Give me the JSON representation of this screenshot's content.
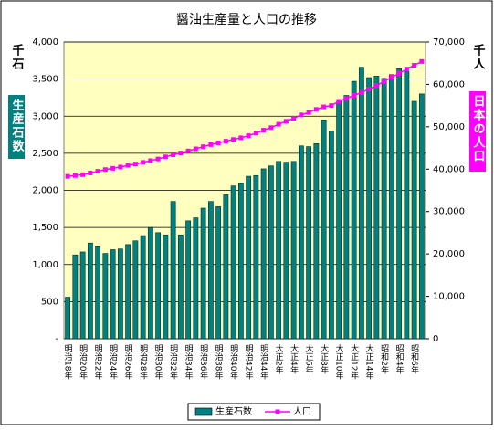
{
  "chart_data": {
    "type": "bar-line",
    "title": "醤油生産量と人口の推移",
    "y_label": "千石",
    "y2_label": "千人",
    "y_legend_box": "生産石数",
    "y2_legend_box": "日本の人口",
    "categories": [
      "明治18年",
      null,
      "明治20年",
      null,
      "明治22年",
      null,
      "明治24年",
      null,
      "明治26年",
      null,
      "明治28年",
      null,
      "明治30年",
      null,
      "明治32年",
      null,
      "明治34年",
      null,
      "明治36年",
      null,
      "明治38年",
      null,
      "明治40年",
      null,
      "明治42年",
      null,
      "明治44年",
      null,
      "大正2年",
      null,
      "大正4年",
      null,
      "大正6年",
      null,
      "大正8年",
      null,
      "大正10年",
      null,
      "大正12年",
      null,
      "大正14年",
      null,
      "昭和2年",
      null,
      "昭和4年",
      null,
      "昭和6年",
      null
    ],
    "series": [
      {
        "name": "生産石数",
        "color": "#008080",
        "values": [
          560,
          1130,
          1170,
          1290,
          1240,
          1150,
          1200,
          1210,
          1270,
          1320,
          1390,
          1500,
          1430,
          1400,
          1850,
          1400,
          1590,
          1630,
          1760,
          1850,
          1780,
          1940,
          2060,
          2100,
          2190,
          2200,
          2290,
          2330,
          2390,
          2380,
          2390,
          2600,
          2590,
          2630,
          2950,
          2800,
          3200,
          3280,
          3470,
          3660,
          3520,
          3540,
          3510,
          3560,
          3640,
          3600,
          3200,
          3300
        ]
      },
      {
        "name": "人口",
        "color": "#ff00ff",
        "axis": "y2",
        "values": [
          38300,
          38500,
          38700,
          39100,
          39500,
          39900,
          40200,
          40500,
          40900,
          41200,
          41600,
          42000,
          42400,
          42900,
          43400,
          43800,
          44300,
          44800,
          45300,
          45800,
          46200,
          46600,
          47000,
          47400,
          47900,
          48500,
          49200,
          49800,
          50600,
          51300,
          52000,
          52800,
          53400,
          54100,
          54700,
          55000,
          56000,
          56700,
          57400,
          58100,
          58900,
          59700,
          60700,
          61700,
          62600,
          63600,
          64500,
          65400
        ]
      }
    ],
    "ylim": [
      0,
      4000
    ],
    "yticks": [
      {
        "value": 0,
        "label": "-"
      },
      500,
      {
        "value": 1000,
        "label": "1,000"
      },
      {
        "value": 1500,
        "label": "1,500"
      },
      {
        "value": 2000,
        "label": "2,000"
      },
      {
        "value": 2500,
        "label": "2,500"
      },
      {
        "value": 3000,
        "label": "3,000"
      },
      {
        "value": 3500,
        "label": "3,500"
      },
      {
        "value": 4000,
        "label": "4,000"
      }
    ],
    "y2lim": [
      0,
      70000
    ],
    "y2ticks": [
      0,
      {
        "value": 10000,
        "label": "10,000"
      },
      {
        "value": 20000,
        "label": "20,000"
      },
      {
        "value": 30000,
        "label": "30,000"
      },
      {
        "value": 40000,
        "label": "40,000"
      },
      {
        "value": 50000,
        "label": "50,000"
      },
      {
        "value": 60000,
        "label": "60,000"
      },
      {
        "value": 70000,
        "label": "70,000"
      }
    ],
    "grid": true,
    "legend": "bottom"
  }
}
